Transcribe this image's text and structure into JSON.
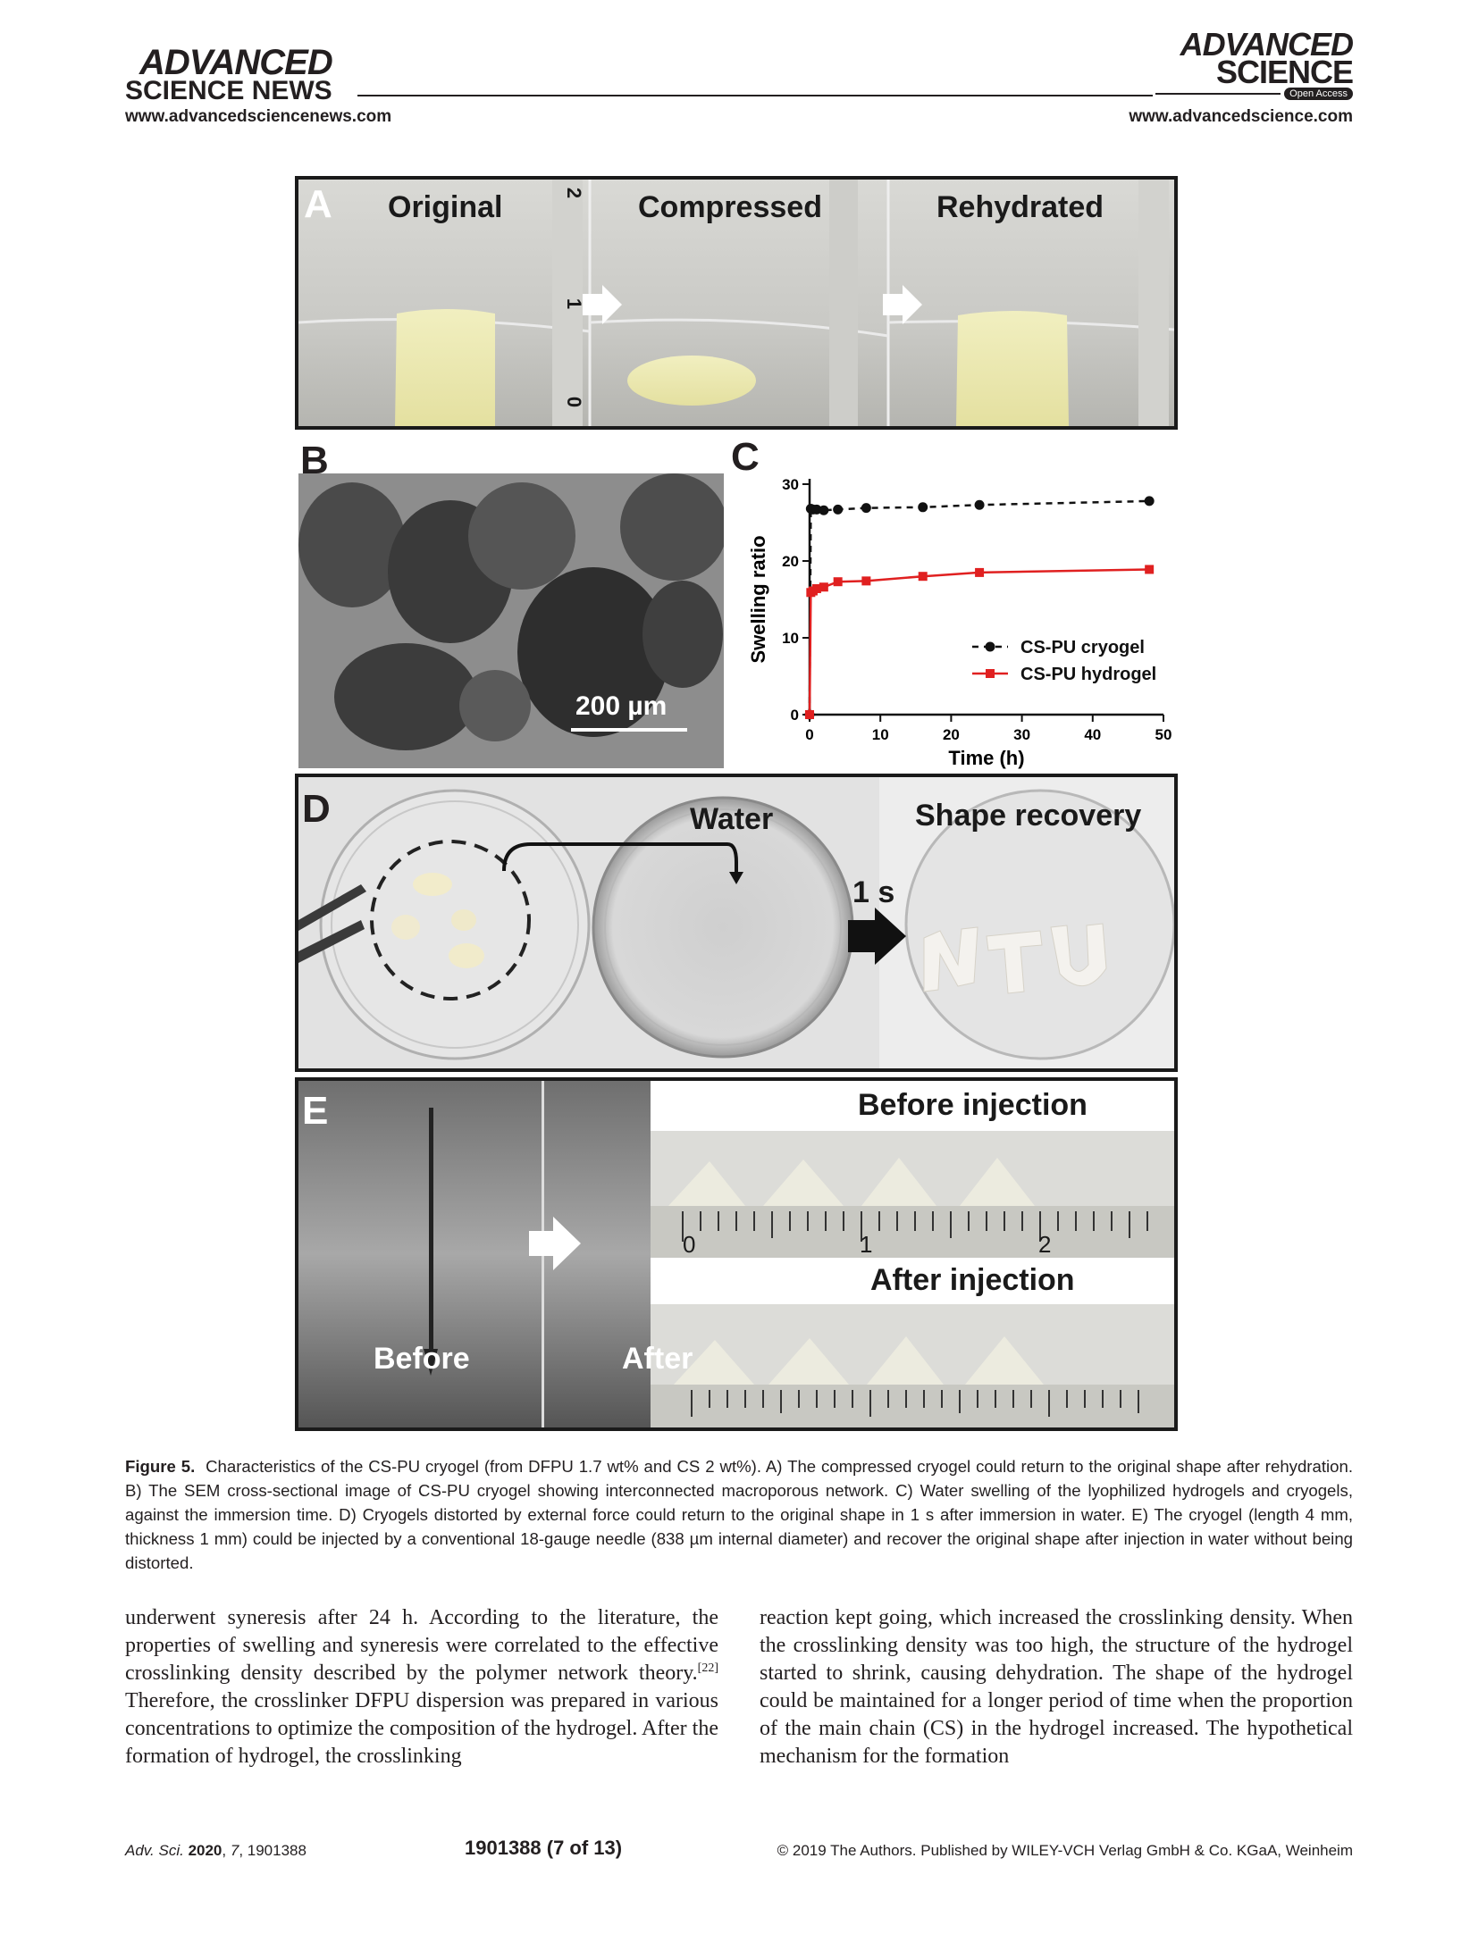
{
  "header": {
    "left_logo_line1": "ADVANCED",
    "left_logo_line2": "SCIENCE NEWS",
    "left_url": "www.advancedsciencenews.com",
    "right_logo_line1": "ADVANCED",
    "right_logo_line2": "SCIENCE",
    "right_badge": "Open Access",
    "right_url": "www.advancedscience.com"
  },
  "figure": {
    "panel_a": {
      "label": "A",
      "titles": [
        "Original",
        "Compressed",
        "Rehydrated"
      ],
      "ruler_labels": [
        "2",
        "1",
        "0"
      ]
    },
    "panel_b": {
      "label": "B",
      "scale_bar": "200 µm"
    },
    "panel_c": {
      "label": "C"
    },
    "panel_d": {
      "label": "D",
      "water_text": "Water",
      "shape_recovery_text": "Shape recovery",
      "time_text": "1 s"
    },
    "panel_e": {
      "label": "E",
      "before_text": "Before",
      "after_text": "After",
      "before_injection": "Before injection",
      "after_injection": "After injection",
      "ruler_labels": [
        "0",
        "1",
        "2"
      ]
    }
  },
  "chart_data": {
    "type": "line",
    "ylabel": "Swelling ratio",
    "xlabel": "Time (h)",
    "xlim": [
      0,
      50
    ],
    "ylim": [
      0,
      30
    ],
    "xticks": [
      0,
      10,
      20,
      30,
      40,
      50
    ],
    "yticks": [
      0,
      10,
      20,
      30
    ],
    "legend_position": "right",
    "series": [
      {
        "name": "CS-PU cryogel",
        "color": "#111111",
        "marker": "circle",
        "dashed": true,
        "x": [
          0,
          0.17,
          0.5,
          1,
          2,
          4,
          8,
          16,
          24,
          48
        ],
        "y": [
          0,
          26.8,
          26.7,
          26.7,
          26.6,
          26.7,
          26.9,
          27.0,
          27.3,
          27.8
        ]
      },
      {
        "name": "CS-PU hydrogel",
        "color": "#e02020",
        "marker": "square",
        "dashed": false,
        "x": [
          0,
          0.17,
          0.5,
          1,
          2,
          4,
          8,
          16,
          24,
          48
        ],
        "y": [
          0,
          15.9,
          16.1,
          16.4,
          16.6,
          17.3,
          17.4,
          18.0,
          18.5,
          18.9
        ]
      }
    ]
  },
  "caption": {
    "label": "Figure 5.",
    "text": "Characteristics of the CS-PU cryogel (from DFPU 1.7 wt% and CS 2 wt%). A) The compressed cryogel could return to the original shape after rehydration. B) The SEM cross-sectional image of CS-PU cryogel showing interconnected macroporous network. C) Water swelling of the lyophilized hydrogels and cryogels, against the immersion time. D) Cryogels distorted by external force could return to the original shape in 1 s after immersion in water. E) The cryogel (length 4 mm, thickness 1 mm) could be injected by a conventional 18-gauge needle (838 µm internal diameter) and recover the original shape after injection in water without being distorted."
  },
  "body": {
    "left_a": "underwent syneresis after 24 h. According to the literature, the properties of swelling and syneresis were correlated to the effective crosslinking density described by the polymer network theory.",
    "left_ref": "[22]",
    "left_b": " Therefore, the crosslinker DFPU dispersion was prepared in various concentrations to optimize the composition of the hydrogel. After the formation of hydrogel, the crosslinking",
    "right": "reaction kept going, which increased the crosslinking density. When the crosslinking density was too high, the structure of the hydrogel started to shrink, causing dehydration. The shape of the hydrogel could be maintained for a longer period of time when the proportion of the main chain (CS) in the hydrogel increased. The hypothetical mechanism for the formation"
  },
  "footer": {
    "journal": "Adv. Sci.",
    "year": "2020",
    "volume": "7",
    "article": "1901388",
    "page": "1901388  (7 of 13)",
    "copyright": "© 2019 The Authors. Published by WILEY-VCH Verlag GmbH & Co. KGaA, Weinheim"
  }
}
